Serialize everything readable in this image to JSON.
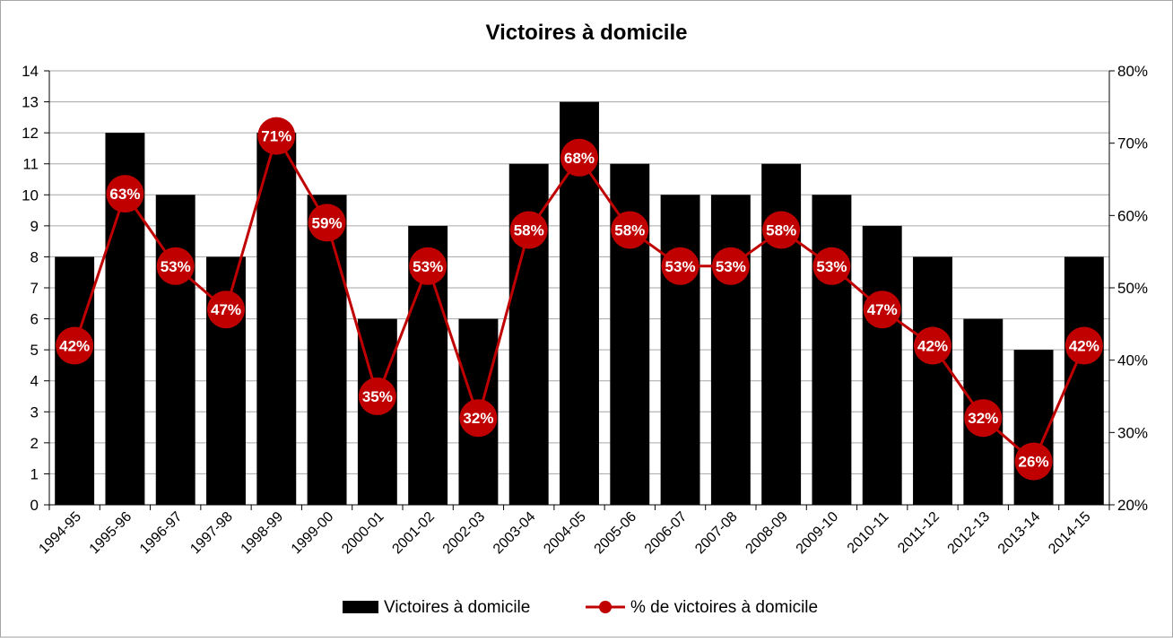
{
  "chart_data": {
    "type": "bar",
    "title": "Victoires à domicile",
    "xlabel": "",
    "ylabel": "",
    "categories": [
      "1994-95",
      "1995-96",
      "1996-97",
      "1997-98",
      "1998-99",
      "1999-00",
      "2000-01",
      "2001-02",
      "2002-03",
      "2003-04",
      "2004-05",
      "2005-06",
      "2006-07",
      "2007-08",
      "2008-09",
      "2009-10",
      "2010-11",
      "2011-12",
      "2012-13",
      "2013-14",
      "2014-15"
    ],
    "series": [
      {
        "name": "Victoires à domicile",
        "type": "bar",
        "axis": "left",
        "color": "#000000",
        "values": [
          8,
          12,
          10,
          8,
          12,
          10,
          6,
          9,
          6,
          11,
          13,
          11,
          10,
          10,
          11,
          10,
          9,
          8,
          6,
          5,
          8
        ]
      },
      {
        "name": "% de victoires à domicile",
        "type": "line",
        "axis": "right",
        "color": "#C00000",
        "values": [
          42,
          63,
          53,
          47,
          71,
          59,
          35,
          53,
          32,
          58,
          68,
          58,
          53,
          53,
          58,
          53,
          47,
          42,
          32,
          26,
          42
        ],
        "labels": [
          "42%",
          "63%",
          "53%",
          "47%",
          "71%",
          "59%",
          "35%",
          "53%",
          "32%",
          "58%",
          "68%",
          "58%",
          "53%",
          "53%",
          "58%",
          "53%",
          "47%",
          "42%",
          "32%",
          "26%",
          "42%"
        ]
      }
    ],
    "y_left": {
      "ylim": [
        0,
        14
      ],
      "ticks": [
        0,
        1,
        2,
        3,
        4,
        5,
        6,
        7,
        8,
        9,
        10,
        11,
        12,
        13,
        14
      ]
    },
    "y_right": {
      "ylim": [
        20,
        80
      ],
      "ticks": [
        "20%",
        "30%",
        "40%",
        "50%",
        "60%",
        "70%",
        "80%"
      ],
      "tick_values": [
        20,
        30,
        40,
        50,
        60,
        70,
        80
      ]
    },
    "grid": true,
    "legend_position": "bottom"
  }
}
